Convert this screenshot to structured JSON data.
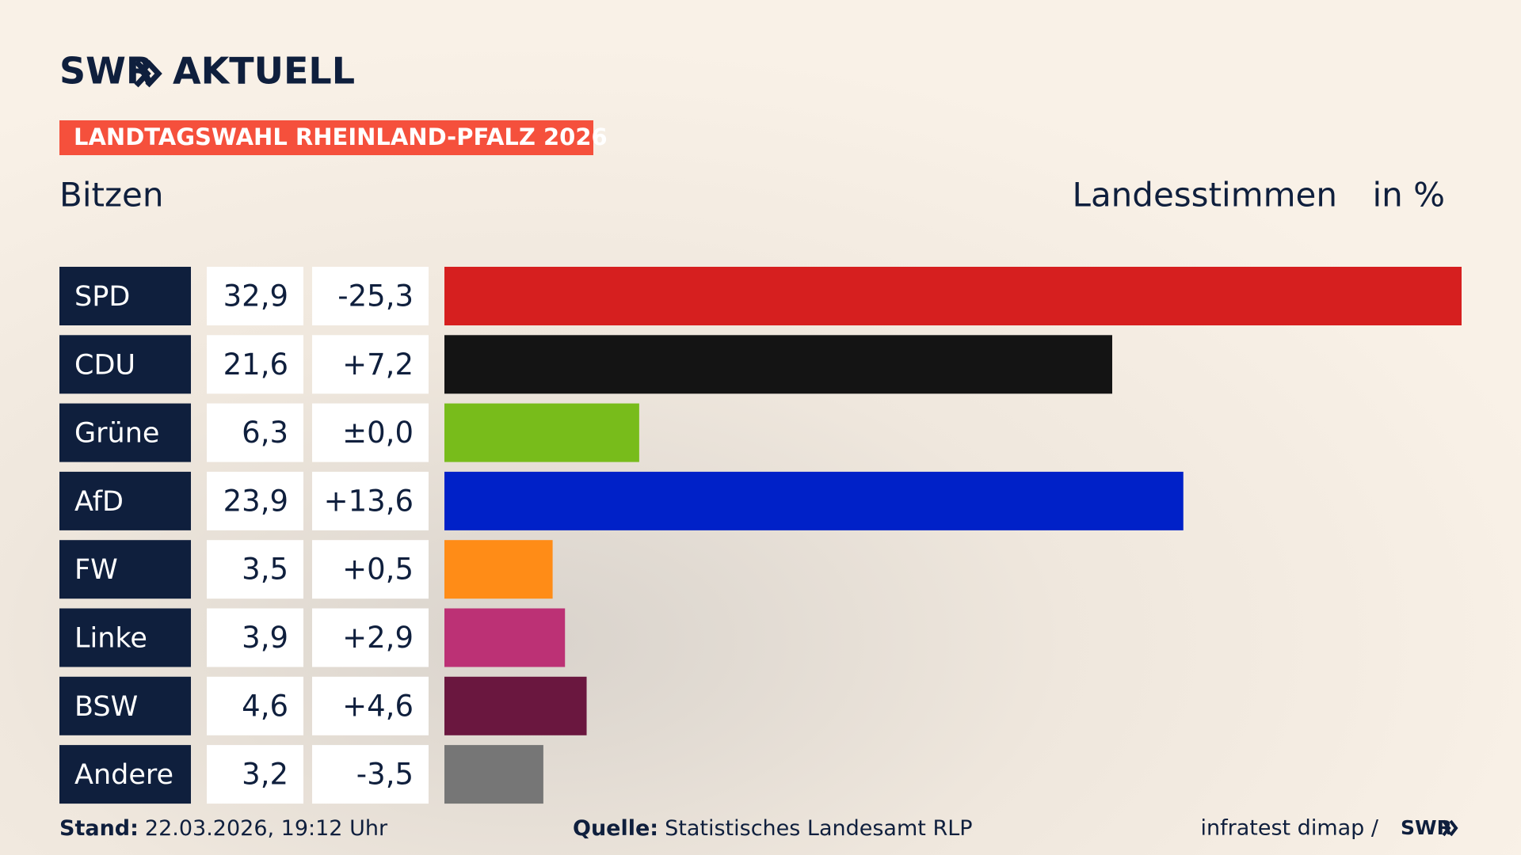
{
  "header": {
    "brand": "SWR",
    "product": "AKTUELL",
    "banner": "LANDTAGSWAHL RHEINLAND-PFALZ 2026"
  },
  "chart_data": {
    "type": "bar",
    "title": "Bitzen",
    "subtitle": "Landesstimmen",
    "unit": "in %",
    "categories": [
      "SPD",
      "CDU",
      "Grüne",
      "AfD",
      "FW",
      "Linke",
      "BSW",
      "Andere"
    ],
    "values": [
      32.9,
      21.6,
      6.3,
      23.9,
      3.5,
      3.9,
      4.6,
      3.2
    ],
    "value_labels": [
      "32,9",
      "21,6",
      "6,3",
      "23,9",
      "3,5",
      "3,9",
      "4,6",
      "3,2"
    ],
    "changes": [
      "-25,3",
      "+7,2",
      "±0,0",
      "+13,6",
      "+0,5",
      "+2,9",
      "+4,6",
      "-3,5"
    ],
    "colors": [
      "#d61f1f",
      "#141414",
      "#78bc1b",
      "#0021c8",
      "#ff8c17",
      "#bc3175",
      "#6a173f",
      "#767676"
    ],
    "xlim": [
      0,
      32.9
    ]
  },
  "footer": {
    "stand_label": "Stand:",
    "stand": "22.03.2026, 19:12 Uhr",
    "source_label": "Quelle:",
    "source": "Statistisches Landesamt RLP",
    "credit": "infratest dimap /",
    "credit_brand": "SWR"
  }
}
